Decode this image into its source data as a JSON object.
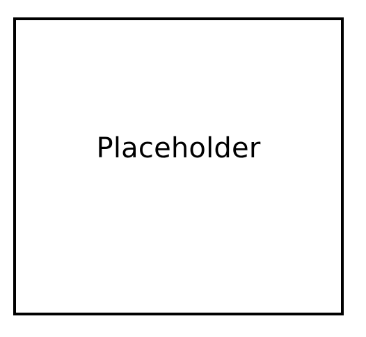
{
  "placeholder": {
    "label": "Placeholder",
    "border_color": "#000000",
    "background_color": "#ffffff"
  }
}
